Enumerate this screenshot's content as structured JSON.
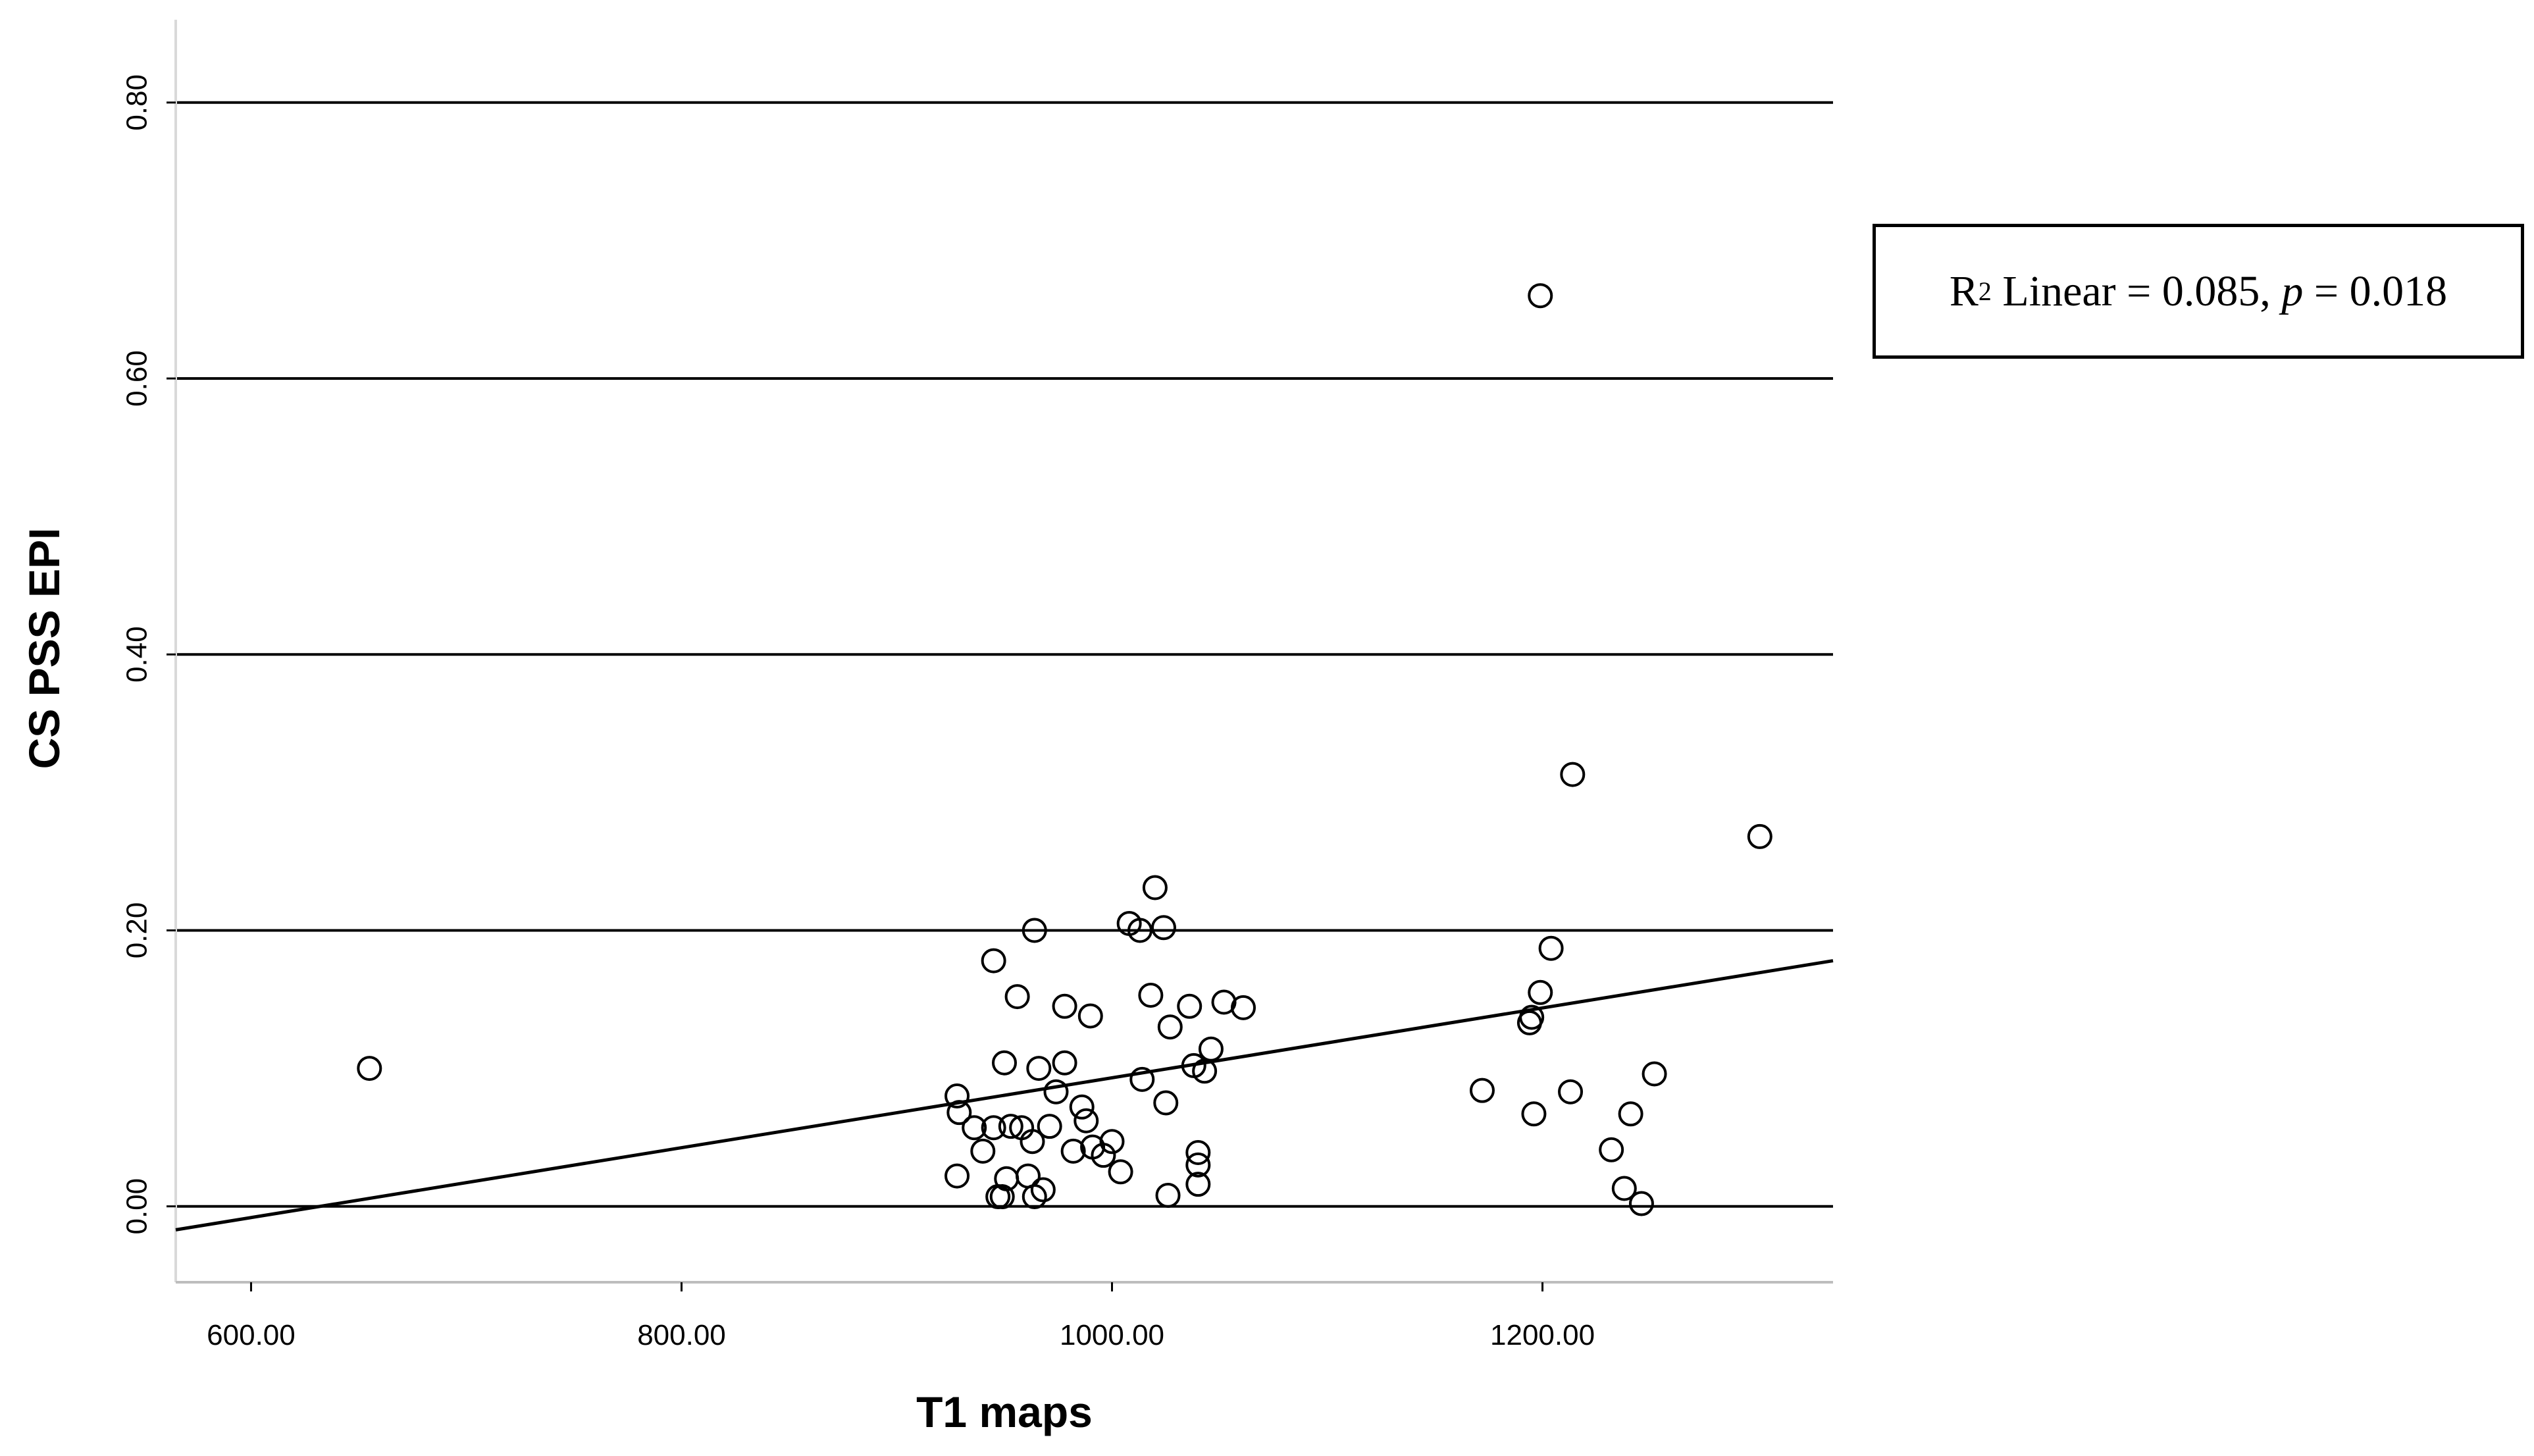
{
  "chart_data": {
    "type": "scatter",
    "title": "",
    "xlabel": "T1 maps",
    "ylabel": "CS PSS EPI",
    "xlim": [
      565,
      1335
    ],
    "ylim": [
      -0.055,
      0.86
    ],
    "xticks": [
      "600.00",
      "800.00",
      "1000.00",
      "1200.00"
    ],
    "xtick_values": [
      600,
      800,
      1000,
      1200
    ],
    "yticks": [
      "0.00",
      "0.20",
      "0.40",
      "0.60",
      "0.80"
    ],
    "ytick_values": [
      0.0,
      0.2,
      0.4,
      0.6,
      0.8
    ],
    "grid": "horizontal",
    "fit_line": {
      "type": "linear",
      "x": [
        565,
        1335
      ],
      "y": [
        -0.017,
        0.178
      ]
    },
    "annotation": {
      "r2_label": "R",
      "r2_sup": "2",
      "linear_text": " Linear = 0.085, ",
      "p_label": "p",
      "p_text": " = 0.018",
      "position": "top-right outside plot"
    },
    "points": [
      {
        "x": 655,
        "y": 0.1
      },
      {
        "x": 928,
        "y": 0.08
      },
      {
        "x": 929,
        "y": 0.068
      },
      {
        "x": 928,
        "y": 0.022
      },
      {
        "x": 936,
        "y": 0.057
      },
      {
        "x": 940,
        "y": 0.04
      },
      {
        "x": 945,
        "y": 0.057
      },
      {
        "x": 945,
        "y": 0.178
      },
      {
        "x": 947,
        "y": 0.007
      },
      {
        "x": 949,
        "y": 0.007
      },
      {
        "x": 950,
        "y": 0.104
      },
      {
        "x": 951,
        "y": 0.02
      },
      {
        "x": 953,
        "y": 0.058
      },
      {
        "x": 956,
        "y": 0.152
      },
      {
        "x": 958,
        "y": 0.057
      },
      {
        "x": 961,
        "y": 0.022
      },
      {
        "x": 963,
        "y": 0.047
      },
      {
        "x": 964,
        "y": 0.2
      },
      {
        "x": 964,
        "y": 0.007
      },
      {
        "x": 966,
        "y": 0.1
      },
      {
        "x": 968,
        "y": 0.012
      },
      {
        "x": 971,
        "y": 0.058
      },
      {
        "x": 974,
        "y": 0.083
      },
      {
        "x": 978,
        "y": 0.145
      },
      {
        "x": 978,
        "y": 0.104
      },
      {
        "x": 982,
        "y": 0.04
      },
      {
        "x": 986,
        "y": 0.072
      },
      {
        "x": 988,
        "y": 0.062
      },
      {
        "x": 990,
        "y": 0.138
      },
      {
        "x": 991,
        "y": 0.043
      },
      {
        "x": 996,
        "y": 0.037
      },
      {
        "x": 1000,
        "y": 0.047
      },
      {
        "x": 1004,
        "y": 0.025
      },
      {
        "x": 1008,
        "y": 0.205
      },
      {
        "x": 1013,
        "y": 0.2
      },
      {
        "x": 1014,
        "y": 0.092
      },
      {
        "x": 1018,
        "y": 0.153
      },
      {
        "x": 1020,
        "y": 0.231
      },
      {
        "x": 1024,
        "y": 0.202
      },
      {
        "x": 1025,
        "y": 0.075
      },
      {
        "x": 1026,
        "y": 0.008
      },
      {
        "x": 1027,
        "y": 0.13
      },
      {
        "x": 1036,
        "y": 0.145
      },
      {
        "x": 1038,
        "y": 0.102
      },
      {
        "x": 1040,
        "y": 0.039
      },
      {
        "x": 1040,
        "y": 0.03
      },
      {
        "x": 1040,
        "y": 0.016
      },
      {
        "x": 1043,
        "y": 0.098
      },
      {
        "x": 1046,
        "y": 0.114
      },
      {
        "x": 1052,
        "y": 0.148
      },
      {
        "x": 1061,
        "y": 0.144
      },
      {
        "x": 1172,
        "y": 0.084
      },
      {
        "x": 1194,
        "y": 0.133
      },
      {
        "x": 1195,
        "y": 0.137
      },
      {
        "x": 1196,
        "y": 0.067
      },
      {
        "x": 1199,
        "y": 0.66
      },
      {
        "x": 1199,
        "y": 0.155
      },
      {
        "x": 1204,
        "y": 0.187
      },
      {
        "x": 1213,
        "y": 0.083
      },
      {
        "x": 1214,
        "y": 0.313
      },
      {
        "x": 1232,
        "y": 0.041
      },
      {
        "x": 1238,
        "y": 0.013
      },
      {
        "x": 1241,
        "y": 0.067
      },
      {
        "x": 1246,
        "y": 0.002
      },
      {
        "x": 1252,
        "y": 0.096
      },
      {
        "x": 1301,
        "y": 0.268
      }
    ]
  }
}
